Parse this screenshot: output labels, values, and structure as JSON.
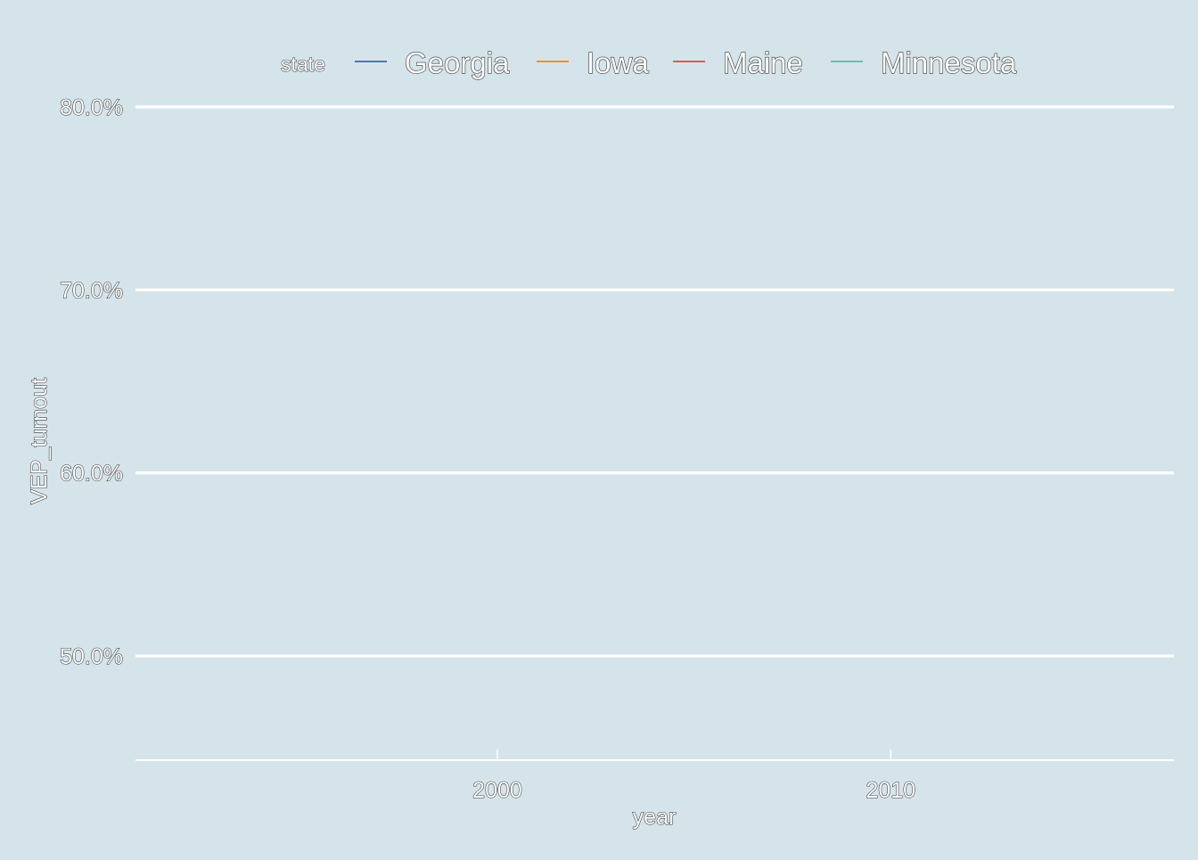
{
  "chart_data": {
    "type": "line",
    "title": "",
    "xlabel": "year",
    "ylabel": "VEP_turnout",
    "x_ticks": [
      2000,
      2010
    ],
    "y_ticks": [
      "50.0%",
      "60.0%",
      "70.0%",
      "80.0%"
    ],
    "y_tick_values": [
      0.5,
      0.6,
      0.7,
      0.8
    ],
    "xlim": [
      1990.8,
      2017.2
    ],
    "ylim": [
      0.443,
      0.8
    ],
    "grid": true,
    "legend": {
      "title": "state",
      "placement": "top",
      "entries": [
        {
          "name": "Georgia",
          "color": "#4e79a7"
        },
        {
          "name": "Iowa",
          "color": "#f28e2b"
        },
        {
          "name": "Maine",
          "color": "#e15759"
        },
        {
          "name": "Minnesota",
          "color": "#76b7b2"
        }
      ]
    },
    "series": [
      {
        "name": "Georgia",
        "color": "#4e79a7",
        "x": [],
        "y": []
      },
      {
        "name": "Iowa",
        "color": "#f28e2b",
        "x": [],
        "y": []
      },
      {
        "name": "Maine",
        "color": "#e15759",
        "x": [],
        "y": []
      },
      {
        "name": "Minnesota",
        "color": "#76b7b2",
        "x": [],
        "y": []
      }
    ],
    "colors": {
      "background": "#d5e4eb",
      "grid": "#ffffff"
    }
  }
}
